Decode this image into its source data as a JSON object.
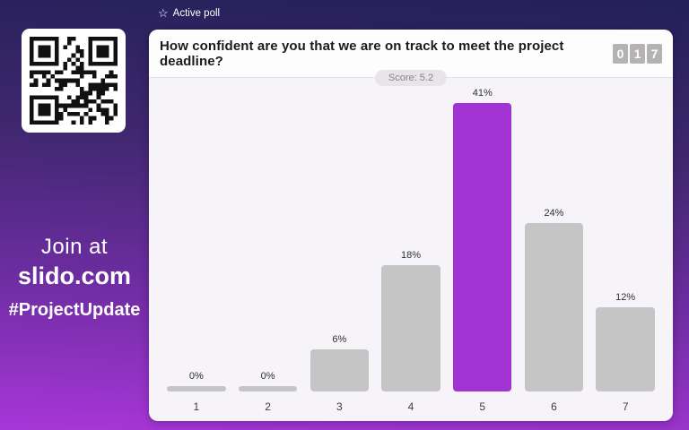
{
  "branding": {
    "join_label": "Join at",
    "site": "slido.com",
    "event_hashtag": "#ProjectUpdate",
    "qr_icon": "qr-code"
  },
  "status_bar": {
    "star_icon": "☆",
    "active_poll_label": "Active poll"
  },
  "poll": {
    "question": "How confident are you that we are on track to meet the project deadline?",
    "participants_counter": {
      "digits": [
        "0",
        "1",
        "7"
      ]
    },
    "score_label": "Score: 5.2"
  },
  "chart_data": {
    "type": "bar",
    "title": "How confident are you that we are on track to meet the project deadline?",
    "categories": [
      "1",
      "2",
      "3",
      "4",
      "5",
      "6",
      "7"
    ],
    "values": [
      0,
      0,
      6,
      18,
      41,
      24,
      12
    ],
    "value_labels": [
      "0%",
      "0%",
      "6%",
      "18%",
      "41%",
      "24%",
      "12%"
    ],
    "highlighted_category": "5",
    "xlabel": "",
    "ylabel": "",
    "ylim": [
      0,
      45
    ],
    "grid": false,
    "legend": false
  },
  "colors": {
    "background_top": "#232058",
    "background_bottom": "#a836d8",
    "card_background": "#f6f4f8",
    "header_background": "#fdfdfe",
    "bar_default": "#c6c5c5",
    "bar_highlight": "#a232d2",
    "counter_box": "#b4b2b3",
    "score_pill_background": "#e7e5ea",
    "score_pill_text": "#85838d"
  }
}
